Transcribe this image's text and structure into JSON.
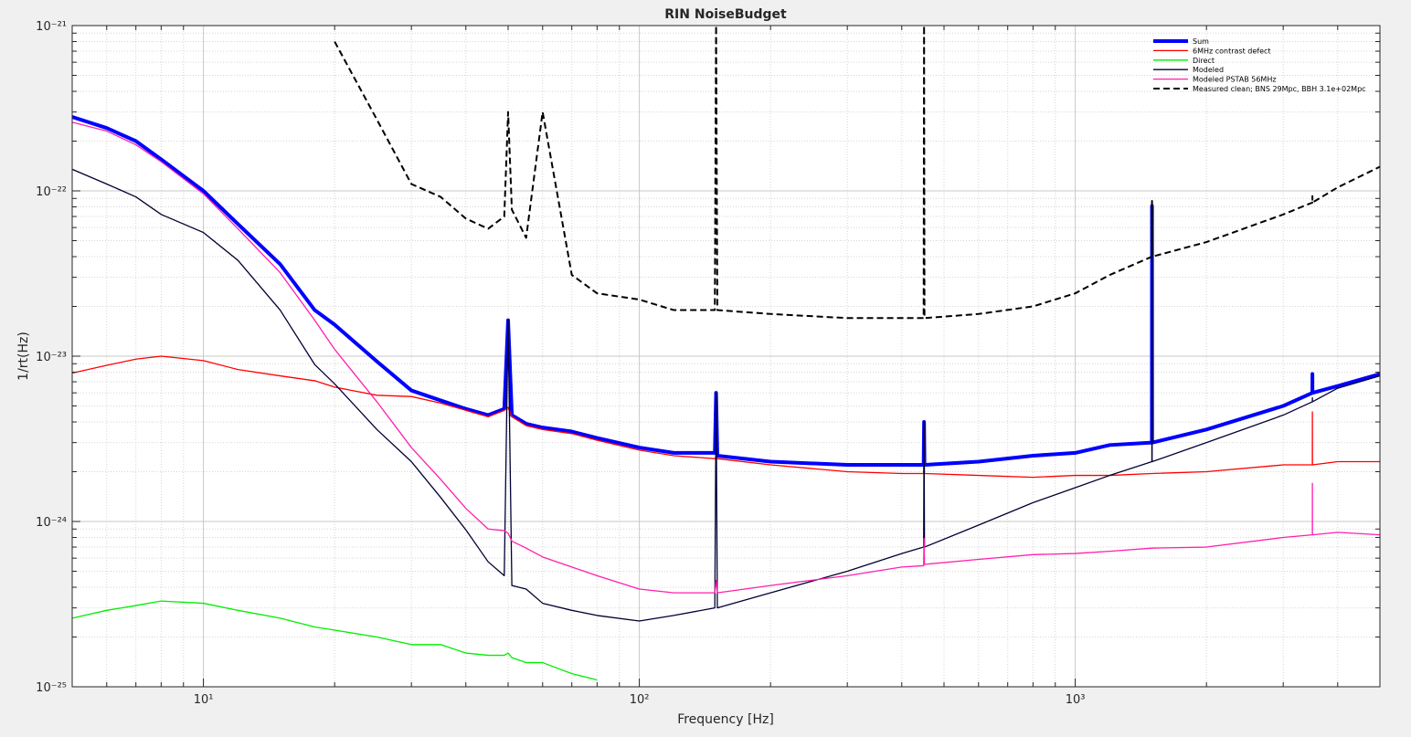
{
  "chart_data": {
    "type": "line",
    "title": "RIN NoiseBudget",
    "x_label": "Frequency [Hz]",
    "y_label": "1/rt(Hz)",
    "x_scale": "log",
    "y_scale": "log",
    "grid": true,
    "minor_grid": true,
    "legend_position": "northeast",
    "xlim": [
      5,
      5000
    ],
    "ylim": [
      1e-25,
      1e-21
    ],
    "xticks": [
      {
        "value": 10,
        "label": "10¹"
      },
      {
        "value": 100,
        "label": "10²"
      },
      {
        "value": 1000,
        "label": "10³"
      }
    ],
    "yticks": [
      {
        "value": 1e-25,
        "label": "10⁻²⁵"
      },
      {
        "value": 1e-24,
        "label": "10⁻²⁴"
      },
      {
        "value": 1e-23,
        "label": "10⁻²³"
      },
      {
        "value": 1e-22,
        "label": "10⁻²²"
      },
      {
        "value": 1e-21,
        "label": "10⁻²¹"
      }
    ],
    "x": [
      5,
      6,
      7,
      8,
      10,
      12,
      15,
      18,
      20,
      25,
      30,
      35,
      40,
      45,
      49,
      50,
      51,
      55,
      60,
      70,
      80,
      100,
      120,
      149,
      150,
      151,
      200,
      300,
      400,
      449,
      450,
      451,
      600,
      800,
      1000,
      1200,
      1499,
      1500,
      1501,
      2000,
      3000,
      3499,
      3500,
      3501,
      4000,
      5000
    ],
    "series": [
      {
        "name": "Sum",
        "color": "#0000ff",
        "width": 4,
        "dash": "solid",
        "values": [
          2.8e-22,
          2.4e-22,
          2e-22,
          1.55e-22,
          1e-22,
          6.3e-23,
          3.6e-23,
          1.9e-23,
          1.55e-23,
          9.3e-24,
          6.2e-24,
          5.4e-24,
          4.8e-24,
          4.4e-24,
          4.8e-24,
          1.65e-23,
          4.4e-24,
          3.9e-24,
          3.7e-24,
          3.5e-24,
          3.2e-24,
          2.8e-24,
          2.6e-24,
          2.6e-24,
          6e-24,
          2.5e-24,
          2.3e-24,
          2.2e-24,
          2.2e-24,
          2.2e-24,
          4e-24,
          2.2e-24,
          2.3e-24,
          2.5e-24,
          2.6e-24,
          2.9e-24,
          3e-24,
          8.1e-23,
          3e-24,
          3.6e-24,
          5e-24,
          6e-24,
          7.8e-24,
          6e-24,
          6.6e-24,
          7.8e-24
        ]
      },
      {
        "name": "6MHz contrast defect",
        "color": "#ff0000",
        "width": 1.3,
        "dash": "solid",
        "values": [
          7.9e-24,
          8.8e-24,
          9.6e-24,
          1e-23,
          9.4e-24,
          8.3e-24,
          7.6e-24,
          7.1e-24,
          6.5e-24,
          5.8e-24,
          5.7e-24,
          5.2e-24,
          4.7e-24,
          4.3e-24,
          4.7e-24,
          4.9e-24,
          4.3e-24,
          3.8e-24,
          3.6e-24,
          3.4e-24,
          3.1e-24,
          2.7e-24,
          2.5e-24,
          2.4e-24,
          2.4e-24,
          2.4e-24,
          2.2e-24,
          2e-24,
          1.95e-24,
          1.95e-24,
          3.6e-24,
          1.95e-24,
          1.9e-24,
          1.85e-24,
          1.9e-24,
          1.9e-24,
          1.95e-24,
          1.95e-24,
          1.95e-24,
          2e-24,
          2.2e-24,
          2.2e-24,
          4.6e-24,
          2.2e-24,
          2.3e-24,
          2.3e-24
        ]
      },
      {
        "name": "Direct",
        "color": "#00ee00",
        "width": 1.3,
        "dash": "solid",
        "values": [
          2.6e-25,
          2.9e-25,
          3.1e-25,
          3.3e-25,
          3.2e-25,
          2.9e-25,
          2.6e-25,
          2.3e-25,
          2.2e-25,
          2e-25,
          1.8e-25,
          1.8e-25,
          1.6e-25,
          1.55e-25,
          1.55e-25,
          1.6e-25,
          1.5e-25,
          1.4e-25,
          1.4e-25,
          1.2e-25,
          1.1e-25,
          null,
          null,
          null,
          null,
          null,
          null,
          null,
          null,
          null,
          null,
          null,
          null,
          null,
          null,
          null,
          null,
          null,
          null,
          null,
          null,
          null,
          null,
          null,
          null,
          null
        ]
      },
      {
        "name": "Modeled",
        "color": "#000033",
        "width": 1.3,
        "dash": "solid",
        "values": [
          1.35e-22,
          1.1e-22,
          9.2e-23,
          7.2e-23,
          5.6e-23,
          3.8e-23,
          1.9e-23,
          8.9e-24,
          6.8e-24,
          3.6e-24,
          2.3e-24,
          1.4e-24,
          8.9e-25,
          5.7e-25,
          4.7e-25,
          1.65e-23,
          4.1e-25,
          3.9e-25,
          3.2e-25,
          2.9e-25,
          2.7e-25,
          2.5e-25,
          2.7e-25,
          3e-25,
          6e-24,
          3e-25,
          3.7e-25,
          5e-25,
          6.4e-25,
          7e-25,
          4e-24,
          7e-25,
          9.5e-25,
          1.3e-24,
          1.6e-24,
          1.9e-24,
          2.3e-24,
          8.1e-23,
          2.3e-24,
          3e-24,
          4.4e-24,
          5.3e-24,
          5.6e-24,
          5.3e-24,
          6.4e-24,
          7.6e-24
        ]
      },
      {
        "name": "Modeled PSTAB 56MHz",
        "color": "#ff1fae",
        "width": 1.3,
        "dash": "solid",
        "values": [
          2.6e-22,
          2.3e-22,
          1.9e-22,
          1.5e-22,
          9.6e-23,
          5.9e-23,
          3.2e-23,
          1.65e-23,
          1.1e-23,
          5.3e-24,
          2.8e-24,
          1.8e-24,
          1.2e-24,
          9e-25,
          8.8e-25,
          8.5e-25,
          7.6e-25,
          6.9e-25,
          6.1e-25,
          5.3e-25,
          4.7e-25,
          3.9e-25,
          3.7e-25,
          3.7e-25,
          4.4e-25,
          3.7e-25,
          4.1e-25,
          4.7e-25,
          5.3e-25,
          5.4e-25,
          7.9e-25,
          5.5e-25,
          5.9e-25,
          6.3e-25,
          6.4e-25,
          6.6e-25,
          6.9e-25,
          6.9e-25,
          6.9e-25,
          7e-25,
          8e-25,
          8.3e-25,
          1.7e-24,
          8.3e-25,
          8.6e-25,
          8.3e-25
        ]
      },
      {
        "name": "Measured clean; BNS 29Mpc, BBH 3.1e+02Mpc",
        "color": "#000000",
        "width": 2,
        "dash": "dashed",
        "values": [
          null,
          null,
          null,
          null,
          null,
          null,
          null,
          null,
          8e-22,
          2.7e-22,
          1.1e-22,
          9.2e-23,
          6.8e-23,
          5.9e-23,
          7e-23,
          3e-22,
          7.7e-23,
          5.2e-23,
          3e-22,
          3.1e-23,
          2.4e-23,
          2.2e-23,
          1.9e-23,
          1.9e-23,
          1e-21,
          1.9e-23,
          1.8e-23,
          1.7e-23,
          1.7e-23,
          1.7e-23,
          1e-21,
          1.7e-23,
          1.8e-23,
          2e-23,
          2.4e-23,
          3.1e-23,
          4e-23,
          8.7e-23,
          4e-23,
          4.9e-23,
          7.2e-23,
          8.5e-23,
          9.3e-23,
          8.5e-23,
          1.05e-22,
          1.4e-22
        ]
      }
    ]
  }
}
